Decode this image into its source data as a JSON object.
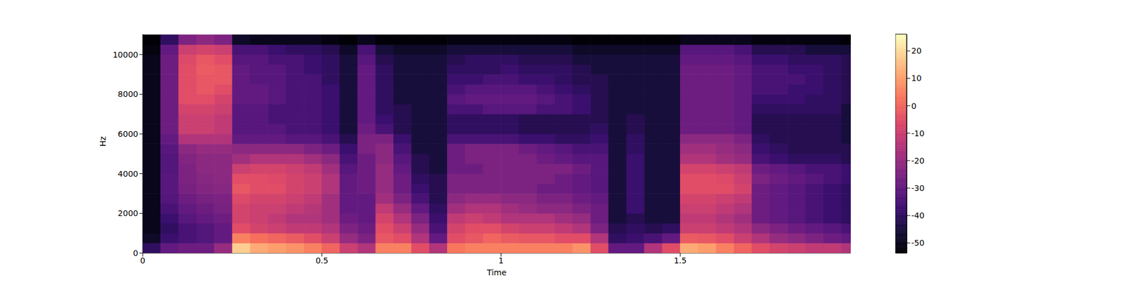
{
  "chart_data": {
    "type": "heatmap",
    "x_label": "Time",
    "y_label": "Hz",
    "xlim": [
      0,
      1.976
    ],
    "ylim": [
      0,
      11025
    ],
    "xticks": [
      0,
      0.5,
      1,
      1.5
    ],
    "yticks": [
      0,
      2000,
      4000,
      6000,
      8000,
      10000
    ],
    "colorbar_range": [
      -53.7,
      26.1
    ],
    "colorbar_ticks": [
      -50,
      -40,
      -30,
      -20,
      -10,
      0,
      10,
      20
    ],
    "x": [
      0.025,
      0.075,
      0.125,
      0.175,
      0.225,
      0.275,
      0.325,
      0.375,
      0.425,
      0.475,
      0.525,
      0.575,
      0.625,
      0.675,
      0.725,
      0.775,
      0.825,
      0.875,
      0.925,
      0.975,
      1.025,
      1.075,
      1.125,
      1.175,
      1.225,
      1.275,
      1.325,
      1.375,
      1.425,
      1.475,
      1.525,
      1.575,
      1.625,
      1.675,
      1.725,
      1.775,
      1.825,
      1.875,
      1.925,
      1.975
    ],
    "y": [
      250,
      750,
      1250,
      1750,
      2250,
      2750,
      3250,
      3750,
      4250,
      4750,
      5250,
      5750,
      6250,
      6750,
      7250,
      7750,
      8250,
      8750,
      9250,
      9750,
      10250,
      10750
    ],
    "values": [
      [
        -40,
        -30,
        -28,
        -28,
        -20,
        18,
        12,
        10,
        8,
        5,
        0,
        -10,
        -15,
        5,
        5,
        -5,
        -15,
        3,
        5,
        5,
        5,
        5,
        5,
        5,
        8,
        -5,
        -30,
        -30,
        -15,
        -5,
        12,
        10,
        5,
        0,
        -5,
        -8,
        -10,
        -12,
        -12,
        -15
      ],
      [
        -48,
        -38,
        -35,
        -33,
        -30,
        5,
        2,
        0,
        -2,
        -5,
        -10,
        -20,
        -25,
        -3,
        -5,
        -15,
        -30,
        -5,
        -3,
        0,
        -2,
        -3,
        -3,
        -5,
        -5,
        -15,
        -40,
        -38,
        -35,
        -30,
        -2,
        -3,
        -5,
        -10,
        -15,
        -20,
        -22,
        -25,
        -28,
        -30
      ],
      [
        -50,
        -40,
        -35,
        -33,
        -30,
        -5,
        -8,
        -10,
        -12,
        -12,
        -15,
        -25,
        -28,
        -5,
        -10,
        -20,
        -35,
        -8,
        -5,
        -5,
        -8,
        -10,
        -10,
        -12,
        -15,
        -25,
        -42,
        -40,
        -42,
        -40,
        -10,
        -10,
        -12,
        -15,
        -22,
        -25,
        -28,
        -30,
        -32,
        -35
      ],
      [
        -50,
        -38,
        -32,
        -30,
        -28,
        -8,
        -10,
        -12,
        -15,
        -15,
        -18,
        -28,
        -30,
        -8,
        -15,
        -25,
        -38,
        -12,
        -10,
        -12,
        -15,
        -15,
        -15,
        -18,
        -20,
        -28,
        -45,
        -42,
        -45,
        -45,
        -12,
        -12,
        -15,
        -18,
        -28,
        -30,
        -32,
        -35,
        -38,
        -40
      ],
      [
        -50,
        -35,
        -30,
        -28,
        -26,
        -8,
        -10,
        -10,
        -12,
        -14,
        -18,
        -30,
        -30,
        -12,
        -20,
        -30,
        -40,
        -18,
        -15,
        -15,
        -18,
        -20,
        -22,
        -22,
        -25,
        -28,
        -45,
        -38,
        -45,
        -45,
        -10,
        -10,
        -12,
        -15,
        -28,
        -30,
        -32,
        -35,
        -38,
        -40
      ],
      [
        -50,
        -33,
        -28,
        -26,
        -25,
        -6,
        -8,
        -8,
        -10,
        -12,
        -18,
        -30,
        -30,
        -18,
        -25,
        -35,
        -42,
        -22,
        -20,
        -20,
        -22,
        -22,
        -25,
        -25,
        -28,
        -30,
        -45,
        -38,
        -45,
        -45,
        -8,
        -8,
        -10,
        -12,
        -28,
        -30,
        -32,
        -35,
        -38,
        -40
      ],
      [
        -50,
        -32,
        -26,
        -24,
        -23,
        -3,
        -5,
        -5,
        -8,
        -10,
        -15,
        -30,
        -28,
        -20,
        -28,
        -38,
        -42,
        -25,
        -25,
        -25,
        -25,
        -25,
        -28,
        -28,
        -30,
        -32,
        -45,
        -38,
        -45,
        -45,
        -5,
        -5,
        -5,
        -8,
        -28,
        -30,
        -32,
        -35,
        -38,
        -40
      ],
      [
        -50,
        -32,
        -25,
        -23,
        -22,
        -5,
        -5,
        -6,
        -8,
        -10,
        -15,
        -30,
        -28,
        -20,
        -28,
        -40,
        -42,
        -25,
        -25,
        -25,
        -25,
        -25,
        -25,
        -28,
        -30,
        -32,
        -45,
        -38,
        -45,
        -45,
        -5,
        -5,
        -6,
        -10,
        -25,
        -28,
        -30,
        -32,
        -35,
        -38
      ],
      [
        -50,
        -33,
        -25,
        -22,
        -22,
        -10,
        -8,
        -8,
        -10,
        -12,
        -18,
        -32,
        -28,
        -20,
        -30,
        -42,
        -45,
        -28,
        -28,
        -25,
        -25,
        -25,
        -25,
        -25,
        -28,
        -32,
        -45,
        -38,
        -45,
        -45,
        -8,
        -8,
        -10,
        -12,
        -28,
        -30,
        -32,
        -35,
        -35,
        -38
      ],
      [
        -50,
        -33,
        -24,
        -22,
        -22,
        -18,
        -15,
        -15,
        -15,
        -18,
        -22,
        -35,
        -28,
        -22,
        -32,
        -42,
        -45,
        -28,
        -25,
        -25,
        -25,
        -25,
        -28,
        -30,
        -32,
        -32,
        -45,
        -38,
        -45,
        -45,
        -15,
        -15,
        -18,
        -20,
        -35,
        -38,
        -40,
        -40,
        -40,
        -42
      ],
      [
        -50,
        -32,
        -22,
        -20,
        -20,
        -22,
        -22,
        -22,
        -22,
        -25,
        -28,
        -38,
        -25,
        -22,
        -35,
        -45,
        -45,
        -28,
        -25,
        -25,
        -25,
        -28,
        -30,
        -32,
        -35,
        -35,
        -45,
        -40,
        -45,
        -45,
        -18,
        -18,
        -20,
        -22,
        -38,
        -40,
        -42,
        -42,
        -42,
        -42
      ],
      [
        -50,
        -30,
        -15,
        -15,
        -15,
        -30,
        -30,
        -30,
        -32,
        -32,
        -35,
        -42,
        -25,
        -25,
        -38,
        -45,
        -45,
        -35,
        -35,
        -35,
        -35,
        -38,
        -38,
        -40,
        -40,
        -38,
        -45,
        -40,
        -45,
        -45,
        -22,
        -22,
        -22,
        -25,
        -40,
        -42,
        -42,
        -42,
        -42,
        -45
      ],
      [
        -50,
        -28,
        -10,
        -10,
        -12,
        -32,
        -32,
        -32,
        -35,
        -35,
        -38,
        -45,
        -28,
        -35,
        -42,
        -45,
        -45,
        -40,
        -40,
        -40,
        -40,
        -42,
        -42,
        -42,
        -42,
        -40,
        -45,
        -42,
        -45,
        -45,
        -28,
        -28,
        -28,
        -30,
        -42,
        -42,
        -42,
        -42,
        -42,
        -45
      ],
      [
        -50,
        -28,
        -10,
        -10,
        -12,
        -32,
        -32,
        -35,
        -35,
        -35,
        -38,
        -45,
        -30,
        -38,
        -42,
        -45,
        -45,
        -40,
        -40,
        -40,
        -40,
        -42,
        -42,
        -42,
        -42,
        -42,
        -45,
        -42,
        -45,
        -45,
        -28,
        -28,
        -28,
        -30,
        -42,
        -42,
        -42,
        -42,
        -42,
        -45
      ],
      [
        -50,
        -28,
        -8,
        -8,
        -10,
        -32,
        -32,
        -35,
        -35,
        -35,
        -38,
        -45,
        -30,
        -40,
        -42,
        -45,
        -45,
        -35,
        -35,
        -32,
        -32,
        -32,
        -35,
        -35,
        -38,
        -42,
        -45,
        -45,
        -45,
        -45,
        -28,
        -28,
        -28,
        -30,
        -40,
        -40,
        -40,
        -40,
        -40,
        -45
      ],
      [
        -50,
        -28,
        -5,
        -5,
        -8,
        -30,
        -30,
        -32,
        -35,
        -35,
        -38,
        -45,
        -30,
        -40,
        -45,
        -45,
        -45,
        -32,
        -30,
        -30,
        -30,
        -30,
        -32,
        -35,
        -38,
        -42,
        -45,
        -45,
        -45,
        -45,
        -28,
        -28,
        -28,
        -30,
        -38,
        -38,
        -38,
        -40,
        -40,
        -42
      ],
      [
        -50,
        -28,
        -5,
        -3,
        -5,
        -30,
        -30,
        -32,
        -35,
        -35,
        -38,
        -45,
        -30,
        -40,
        -45,
        -45,
        -45,
        -35,
        -32,
        -32,
        -32,
        -32,
        -35,
        -38,
        -40,
        -42,
        -45,
        -45,
        -45,
        -45,
        -28,
        -28,
        -28,
        -30,
        -35,
        -35,
        -38,
        -38,
        -40,
        -42
      ],
      [
        -50,
        -28,
        -5,
        -3,
        -3,
        -30,
        -32,
        -32,
        -35,
        -35,
        -40,
        -45,
        -30,
        -40,
        -45,
        -45,
        -45,
        -38,
        -38,
        -35,
        -35,
        -38,
        -38,
        -40,
        -42,
        -42,
        -45,
        -45,
        -45,
        -45,
        -28,
        -28,
        -28,
        -30,
        -35,
        -35,
        -35,
        -38,
        -40,
        -42
      ],
      [
        -50,
        -28,
        -5,
        -2,
        -3,
        -30,
        -32,
        -32,
        -35,
        -38,
        -40,
        -45,
        -30,
        -40,
        -45,
        -45,
        -45,
        -40,
        -40,
        -40,
        -38,
        -40,
        -40,
        -40,
        -42,
        -45,
        -45,
        -45,
        -45,
        -45,
        -28,
        -28,
        -28,
        -30,
        -35,
        -35,
        -38,
        -38,
        -40,
        -42
      ],
      [
        -50,
        -28,
        -6,
        -3,
        -5,
        -32,
        -32,
        -35,
        -35,
        -38,
        -40,
        -45,
        -32,
        -42,
        -45,
        -45,
        -45,
        -42,
        -40,
        -40,
        -40,
        -42,
        -42,
        -42,
        -45,
        -45,
        -45,
        -45,
        -45,
        -45,
        -30,
        -30,
        -30,
        -32,
        -38,
        -38,
        -40,
        -40,
        -40,
        -42
      ],
      [
        -52,
        -30,
        -10,
        -8,
        -10,
        -35,
        -35,
        -38,
        -40,
        -40,
        -42,
        -48,
        -35,
        -45,
        -48,
        -48,
        -48,
        -45,
        -45,
        -45,
        -45,
        -45,
        -45,
        -45,
        -48,
        -48,
        -48,
        -48,
        -48,
        -48,
        -32,
        -32,
        -32,
        -35,
        -42,
        -42,
        -42,
        -45,
        -45,
        -45
      ],
      [
        -53,
        -40,
        -25,
        -22,
        -25,
        -48,
        -50,
        -50,
        -50,
        -50,
        -52,
        -53,
        -50,
        -53,
        -53,
        -53,
        -53,
        -52,
        -52,
        -52,
        -52,
        -52,
        -52,
        -52,
        -53,
        -53,
        -53,
        -53,
        -53,
        -53,
        -50,
        -50,
        -50,
        -50,
        -52,
        -52,
        -52,
        -52,
        -52,
        -53
      ]
    ]
  }
}
